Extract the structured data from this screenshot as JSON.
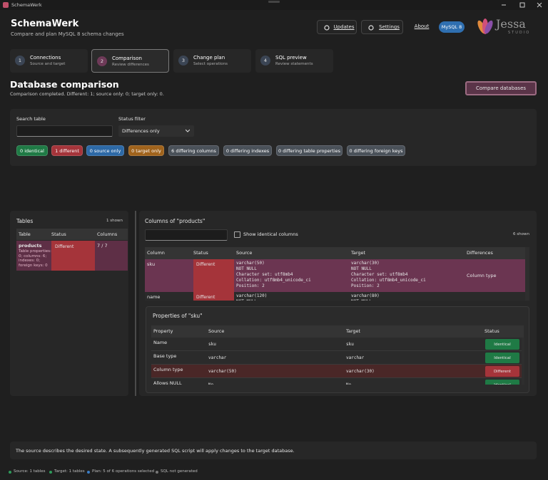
{
  "window": {
    "title": "SchemaWerk"
  },
  "header": {
    "title": "SchemaWerk",
    "subtitle": "Compare and plan MySQL 8 schema changes",
    "buttons": [
      "Updates",
      "Settings",
      "About"
    ],
    "badge": "MySQL 8",
    "logo": "Jessa",
    "logo_sub": "STUDIO"
  },
  "steps": [
    {
      "number": "1",
      "title": "Connections",
      "subtitle": "Source and target"
    },
    {
      "number": "2",
      "title": "Comparison",
      "subtitle": "Review differences"
    },
    {
      "number": "3",
      "title": "Change plan",
      "subtitle": "Select operations"
    },
    {
      "number": "4",
      "title": "SQL preview",
      "subtitle": "Review statements"
    }
  ],
  "page": {
    "title": "Database comparison",
    "status": "Comparison completed. Different: 1; source only: 0; target only: 0.",
    "action": "Compare databases"
  },
  "filters": {
    "search_label": "Search table",
    "status_label": "Status filter",
    "status_value": "Differences only",
    "chips": [
      {
        "label": "0 identical",
        "color": "#1f7a45"
      },
      {
        "label": "1 different",
        "color": "#a5343a"
      },
      {
        "label": "0 source only",
        "color": "#2d69a6"
      },
      {
        "label": "0 target only",
        "color": "#a0631c"
      },
      {
        "label": "6 differing columns",
        "color": "#4a5159"
      },
      {
        "label": "0 differing indexes",
        "color": "#4a5159"
      },
      {
        "label": "0 differing table properties",
        "color": "#4a5159"
      },
      {
        "label": "0 differing foreign keys",
        "color": "#4a5159"
      }
    ]
  },
  "tables_panel": {
    "title": "Tables",
    "count": "1 shown",
    "headers": [
      "Table",
      "Status",
      "Columns"
    ],
    "rows": [
      {
        "name": "products",
        "details": "Table properties: 0; columns: 6; indexes: 0; foreign keys: 0",
        "status": "Different",
        "columns": "7 / 7"
      }
    ]
  },
  "columns_panel": {
    "title": "Columns of \"products\"",
    "checkbox": "Show identical columns",
    "count": "6 shown",
    "headers": [
      "Column",
      "Status",
      "Source",
      "Target",
      "Differences"
    ],
    "rows": [
      {
        "column": "sku",
        "status": "Different",
        "source": [
          "varchar(50)",
          "NOT NULL",
          "Character set: utf8mb4",
          "Collation: utf8mb4_unicode_ci",
          "Position: 2"
        ],
        "target": [
          "varchar(30)",
          "NOT NULL",
          "Character set: utf8mb4",
          "Collation: utf8mb4_unicode_ci",
          "Position: 2"
        ],
        "differences": "Column type"
      },
      {
        "column": "name",
        "status": "Different",
        "source": [
          "varchar(120)",
          "NOT NULL"
        ],
        "target": [
          "varchar(80)",
          "NOT NULL"
        ]
      }
    ]
  },
  "properties": {
    "title": "Properties of \"sku\"",
    "headers": [
      "Property",
      "Source",
      "Target",
      "Status"
    ],
    "rows": [
      {
        "property": "Name",
        "source": "sku",
        "target": "sku",
        "status": "Identical",
        "color": "#1f7a45"
      },
      {
        "property": "Base type",
        "source": "varchar",
        "target": "varchar",
        "status": "Identical",
        "color": "#1f7a45"
      },
      {
        "property": "Column type",
        "source": "varchar(50)",
        "target": "varchar(30)",
        "status": "Different",
        "color": "#a5343a"
      },
      {
        "property": "Allows NULL",
        "source": "No",
        "target": "No",
        "status": "Identical",
        "color": "#1f7a45"
      }
    ]
  },
  "note": "The source describes the desired state. A subsequently generated SQL script will apply changes to the target database.",
  "statusbar": [
    {
      "label": "Source: 1 tables",
      "color": "#2e9a5a"
    },
    {
      "label": "Target: 1 tables",
      "color": "#2e9a5a"
    },
    {
      "label": "Plan: 5 of 6 operations selected",
      "color": "#3a7cc4"
    },
    {
      "label": "SQL not generated",
      "color": "#777777"
    }
  ]
}
